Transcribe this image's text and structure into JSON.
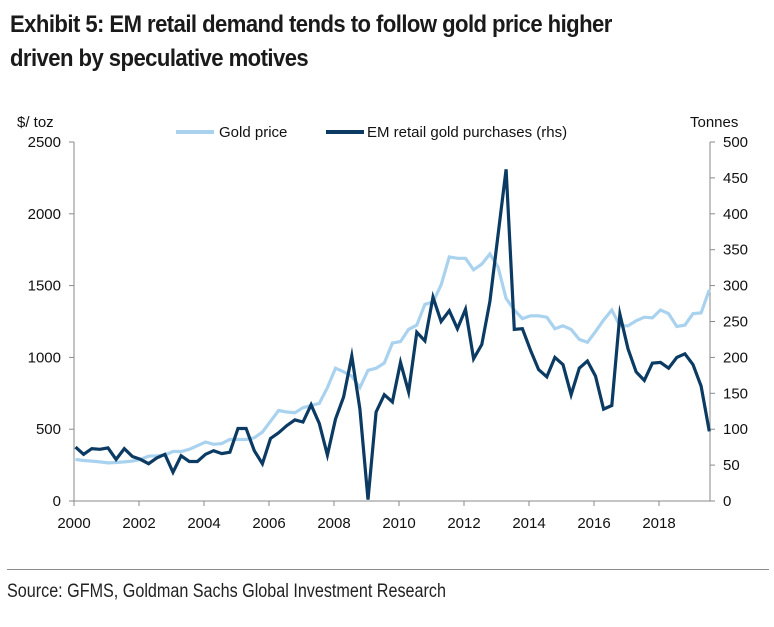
{
  "title_line1": "Exhibit 5: EM retail demand tends to follow gold price higher",
  "title_line2": "driven by speculative motives",
  "source": "Source: GFMS, Goldman Sachs Global Investment Research",
  "colors": {
    "gold_price": "#a9d2ef",
    "em_purchases": "#0b3a63",
    "axis": "#8a8a8a",
    "text": "#111111"
  },
  "chart_data": {
    "type": "line",
    "title": "Exhibit 5: EM retail demand tends to follow gold price higher driven by speculative motives",
    "xlabel": "",
    "ylabel": "$/ toz",
    "y2label": "Tonnes",
    "frequency": "quarterly",
    "x_start": 2000.0,
    "x_step": 0.25,
    "xlim": [
      2000,
      2019.75
    ],
    "ylim": [
      0,
      2500
    ],
    "y2lim": [
      0,
      500
    ],
    "x_ticks": [
      "2000",
      "2002",
      "2004",
      "2006",
      "2008",
      "2010",
      "2012",
      "2014",
      "2016",
      "2018"
    ],
    "y_ticks": [
      "0",
      "500",
      "1000",
      "1500",
      "2000",
      "2500"
    ],
    "y2_ticks": [
      "0",
      "50",
      "100",
      "150",
      "200",
      "250",
      "300",
      "350",
      "400",
      "450",
      "500"
    ],
    "legend_position": "top-center",
    "grid": false,
    "series": [
      {
        "name": "Gold price",
        "axis": "left",
        "values": [
          290,
          282,
          278,
          272,
          265,
          268,
          272,
          278,
          290,
          312,
          315,
          320,
          345,
          345,
          360,
          385,
          410,
          395,
          400,
          430,
          428,
          428,
          440,
          480,
          555,
          630,
          620,
          615,
          650,
          665,
          680,
          790,
          925,
          900,
          870,
          790,
          910,
          925,
          960,
          1100,
          1110,
          1195,
          1225,
          1370,
          1385,
          1505,
          1700,
          1690,
          1690,
          1610,
          1650,
          1720,
          1630,
          1410,
          1330,
          1270,
          1290,
          1290,
          1280,
          1200,
          1220,
          1195,
          1125,
          1105,
          1180,
          1260,
          1330,
          1220,
          1220,
          1255,
          1280,
          1275,
          1330,
          1305,
          1215,
          1225,
          1305,
          1310,
          1470
        ]
      },
      {
        "name": "EM retail gold purchases (rhs)",
        "axis": "right",
        "values": [
          75,
          65,
          73,
          72,
          74,
          58,
          73,
          62,
          58,
          52,
          60,
          65,
          40,
          63,
          55,
          55,
          65,
          70,
          66,
          68,
          101,
          101,
          70,
          52,
          87,
          95,
          105,
          113,
          110,
          134,
          108,
          64,
          114,
          145,
          202,
          128,
          2,
          124,
          148,
          138,
          193,
          152,
          235,
          223,
          284,
          250,
          265,
          240,
          267,
          198,
          218,
          278,
          370,
          462,
          239,
          240,
          210,
          183,
          173,
          200,
          190,
          148,
          185,
          195,
          174,
          128,
          133,
          260,
          212,
          180,
          168,
          192,
          193,
          185,
          200,
          205,
          190,
          160,
          97
        ]
      }
    ]
  }
}
